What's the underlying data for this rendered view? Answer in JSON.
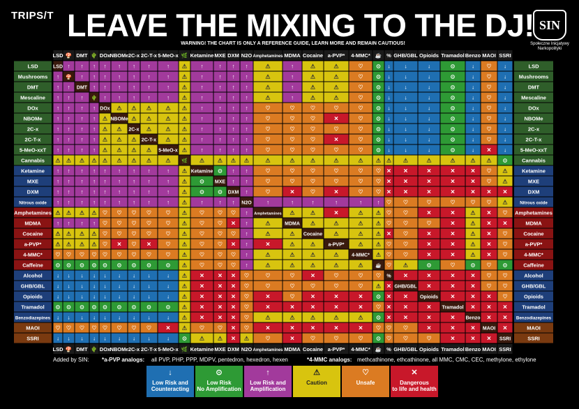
{
  "header": {
    "logo": "TRIPS/T",
    "title": "LEAVE THE MIXING TO THE DJ!",
    "warning": "WARNING! THE CHART IS ONLY A REFERENCE GUIDE, LEARN MORE AND REMAIN CAUTIOUS!",
    "sin_mark": "SIN",
    "sin_org": "Społeczne Inicjatywy Narkopolityki"
  },
  "colors": {
    "blue": "#1f6fb2",
    "green": "#2e9a35",
    "purple": "#a23a9c",
    "yellow": "#d8c40f",
    "orange": "#db7b22",
    "red": "#c8182a",
    "diag": "#3a1a0e"
  },
  "chart_data": {
    "type": "table",
    "title": "LEAVE THE MIXING TO THE DJ!",
    "col_labels": [
      "LSD",
      "🍄",
      "DMT",
      "🌵",
      "DOx",
      "NBOMe",
      "2C-x",
      "2C-T-x",
      "5-MeO-x",
      "🌿",
      "Ketamine",
      "MXE",
      "DXM",
      "N2O",
      "Amphetamines",
      "MDMA",
      "Cocaine",
      "a-PVP*",
      "4-MMC*",
      "☕",
      "%",
      "GHB/GBL",
      "Opioids",
      "Tramadol",
      "Benzo",
      "MAOI",
      "SSRI"
    ],
    "col_labels_bottom": [
      "LSD",
      "🍄",
      "DMT",
      "🌵",
      "DOx",
      "NBOMe",
      "2C-x",
      "2C-T-x",
      "5-MeO-x",
      "🌿",
      "Ketamine",
      "MXE",
      "DXM",
      "N2O",
      "Amphetamines",
      "MDMA",
      "Cocaine",
      "a-PVP*",
      "4-MMC*",
      "☕",
      "%",
      "GHB/GBL",
      "Opioids",
      "Tramadol",
      "Benzo",
      "MAOI",
      "SSRI"
    ],
    "row_labels": [
      "LSD",
      "Mushrooms",
      "DMT",
      "Mescaline",
      "DOx",
      "NBOMe",
      "2C-x",
      "2C-T-x",
      "5-MeO-xxT",
      "Cannabis",
      "Ketamine",
      "MXE",
      "DXM",
      "Nitrous oxide",
      "Amphetamines",
      "MDMA",
      "Cocaine",
      "a-PVP*",
      "4-MMC*",
      "Caffeine",
      "Alcohol",
      "GHB/GBL",
      "Opioids",
      "Tramadol",
      "Benzodiazepines",
      "MAOI",
      "SSRI"
    ],
    "category_key": {
      "S": "Low Risk and Counteracting",
      "G": "Low Risk No Amplification",
      "P": "Low Risk and Amplification",
      "Y": "Caution",
      "O": "Unsafe",
      "R": "Dangerous to life and health"
    },
    "cells": [
      [
        "-",
        "P",
        "P",
        "P",
        "P",
        "P",
        "P",
        "P",
        "P",
        "Y",
        "P",
        "P",
        "P",
        "P",
        "Y",
        "P",
        "Y",
        "Y",
        "O",
        "G",
        "S",
        "S",
        "S",
        "G",
        "S",
        "O",
        "S"
      ],
      [
        "P",
        "-",
        "P",
        "P",
        "P",
        "P",
        "P",
        "P",
        "P",
        "Y",
        "P",
        "P",
        "P",
        "P",
        "Y",
        "P",
        "Y",
        "Y",
        "O",
        "G",
        "S",
        "S",
        "S",
        "G",
        "S",
        "O",
        "S"
      ],
      [
        "P",
        "P",
        "-",
        "P",
        "P",
        "P",
        "P",
        "P",
        "P",
        "Y",
        "P",
        "P",
        "P",
        "P",
        "Y",
        "P",
        "Y",
        "Y",
        "O",
        "G",
        "S",
        "S",
        "S",
        "G",
        "S",
        "O",
        "S"
      ],
      [
        "P",
        "P",
        "P",
        "-",
        "P",
        "P",
        "P",
        "P",
        "P",
        "Y",
        "P",
        "P",
        "P",
        "P",
        "Y",
        "P",
        "Y",
        "Y",
        "O",
        "G",
        "S",
        "S",
        "S",
        "G",
        "S",
        "O",
        "S"
      ],
      [
        "P",
        "P",
        "P",
        "P",
        "-",
        "Y",
        "Y",
        "Y",
        "Y",
        "Y",
        "P",
        "P",
        "P",
        "P",
        "O",
        "O",
        "O",
        "O",
        "O",
        "G",
        "S",
        "S",
        "S",
        "G",
        "S",
        "O",
        "S"
      ],
      [
        "P",
        "P",
        "P",
        "P",
        "Y",
        "-",
        "Y",
        "Y",
        "Y",
        "Y",
        "P",
        "P",
        "P",
        "P",
        "O",
        "O",
        "O",
        "R",
        "O",
        "G",
        "S",
        "S",
        "S",
        "G",
        "S",
        "O",
        "S"
      ],
      [
        "P",
        "P",
        "P",
        "P",
        "Y",
        "Y",
        "-",
        "Y",
        "Y",
        "Y",
        "P",
        "P",
        "P",
        "P",
        "O",
        "O",
        "O",
        "O",
        "O",
        "G",
        "S",
        "S",
        "S",
        "G",
        "S",
        "O",
        "S"
      ],
      [
        "P",
        "P",
        "P",
        "P",
        "Y",
        "Y",
        "Y",
        "-",
        "Y",
        "Y",
        "P",
        "P",
        "P",
        "P",
        "O",
        "O",
        "O",
        "R",
        "O",
        "G",
        "S",
        "S",
        "S",
        "G",
        "S",
        "O",
        "S"
      ],
      [
        "P",
        "P",
        "P",
        "P",
        "Y",
        "Y",
        "Y",
        "Y",
        "-",
        "Y",
        "P",
        "P",
        "P",
        "P",
        "O",
        "O",
        "O",
        "O",
        "O",
        "G",
        "S",
        "S",
        "S",
        "G",
        "S",
        "R",
        "S"
      ],
      [
        "Y",
        "Y",
        "Y",
        "Y",
        "Y",
        "Y",
        "Y",
        "Y",
        "Y",
        "-",
        "Y",
        "Y",
        "Y",
        "Y",
        "Y",
        "Y",
        "Y",
        "Y",
        "Y",
        "Y",
        "Y",
        "Y",
        "Y",
        "Y",
        "Y",
        "Y",
        "G"
      ],
      [
        "P",
        "P",
        "P",
        "P",
        "P",
        "P",
        "P",
        "P",
        "P",
        "Y",
        "-",
        "G",
        "P",
        "P",
        "O",
        "O",
        "O",
        "O",
        "O",
        "O",
        "R",
        "R",
        "R",
        "R",
        "R",
        "O",
        "Y"
      ],
      [
        "P",
        "P",
        "P",
        "P",
        "P",
        "P",
        "P",
        "P",
        "P",
        "Y",
        "G",
        "-",
        "P",
        "P",
        "O",
        "O",
        "O",
        "O",
        "O",
        "O",
        "R",
        "R",
        "R",
        "R",
        "R",
        "O",
        "Y"
      ],
      [
        "P",
        "P",
        "P",
        "P",
        "P",
        "P",
        "P",
        "P",
        "P",
        "Y",
        "G",
        "G",
        "-",
        "P",
        "O",
        "R",
        "O",
        "R",
        "O",
        "O",
        "R",
        "R",
        "R",
        "R",
        "R",
        "R",
        "R"
      ],
      [
        "P",
        "P",
        "P",
        "P",
        "P",
        "P",
        "P",
        "P",
        "P",
        "Y",
        "P",
        "P",
        "P",
        "-",
        "P",
        "P",
        "P",
        "P",
        "P",
        "P",
        "O",
        "O",
        "O",
        "O",
        "O",
        "O",
        "Y"
      ],
      [
        "Y",
        "Y",
        "Y",
        "Y",
        "O",
        "O",
        "O",
        "O",
        "O",
        "Y",
        "O",
        "O",
        "O",
        "P",
        "-",
        "Y",
        "Y",
        "R",
        "Y",
        "Y",
        "O",
        "O",
        "R",
        "R",
        "Y",
        "R",
        "O"
      ],
      [
        "P",
        "P",
        "P",
        "P",
        "O",
        "O",
        "O",
        "O",
        "O",
        "Y",
        "O",
        "O",
        "R",
        "P",
        "Y",
        "-",
        "Y",
        "Y",
        "Y",
        "Y",
        "O",
        "O",
        "O",
        "R",
        "Y",
        "R",
        "R"
      ],
      [
        "Y",
        "Y",
        "Y",
        "Y",
        "O",
        "O",
        "O",
        "O",
        "O",
        "Y",
        "O",
        "O",
        "O",
        "P",
        "Y",
        "Y",
        "-",
        "Y",
        "Y",
        "Y",
        "R",
        "O",
        "R",
        "R",
        "Y",
        "R",
        "O"
      ],
      [
        "Y",
        "Y",
        "Y",
        "Y",
        "O",
        "R",
        "O",
        "R",
        "O",
        "Y",
        "O",
        "O",
        "R",
        "P",
        "R",
        "Y",
        "Y",
        "-",
        "Y",
        "Y",
        "O",
        "O",
        "R",
        "R",
        "Y",
        "R",
        "O"
      ],
      [
        "O",
        "O",
        "O",
        "O",
        "O",
        "O",
        "O",
        "O",
        "O",
        "Y",
        "O",
        "O",
        "O",
        "P",
        "Y",
        "Y",
        "Y",
        "Y",
        "-",
        "Y",
        "O",
        "O",
        "R",
        "R",
        "Y",
        "R",
        "O"
      ],
      [
        "G",
        "G",
        "G",
        "G",
        "G",
        "G",
        "G",
        "G",
        "G",
        "Y",
        "O",
        "O",
        "O",
        "P",
        "Y",
        "Y",
        "Y",
        "Y",
        "Y",
        "-",
        "O",
        "Y",
        "G",
        "O",
        "G",
        "O",
        "G"
      ],
      [
        "S",
        "S",
        "S",
        "S",
        "S",
        "S",
        "S",
        "S",
        "S",
        "Y",
        "R",
        "R",
        "R",
        "O",
        "O",
        "O",
        "R",
        "O",
        "O",
        "O",
        "-",
        "R",
        "R",
        "R",
        "R",
        "O",
        "O"
      ],
      [
        "S",
        "S",
        "S",
        "S",
        "S",
        "S",
        "S",
        "S",
        "S",
        "Y",
        "R",
        "R",
        "R",
        "O",
        "O",
        "O",
        "O",
        "O",
        "O",
        "Y",
        "R",
        "-",
        "R",
        "R",
        "R",
        "O",
        "O"
      ],
      [
        "S",
        "S",
        "S",
        "S",
        "S",
        "S",
        "S",
        "S",
        "S",
        "Y",
        "R",
        "R",
        "R",
        "O",
        "R",
        "O",
        "R",
        "R",
        "R",
        "G",
        "R",
        "R",
        "-",
        "R",
        "R",
        "R",
        "O"
      ],
      [
        "G",
        "G",
        "G",
        "G",
        "G",
        "G",
        "G",
        "G",
        "G",
        "Y",
        "R",
        "R",
        "R",
        "O",
        "R",
        "R",
        "R",
        "R",
        "R",
        "O",
        "R",
        "R",
        "R",
        "-",
        "R",
        "R",
        "R"
      ],
      [
        "S",
        "S",
        "S",
        "S",
        "S",
        "S",
        "S",
        "S",
        "S",
        "Y",
        "R",
        "R",
        "R",
        "O",
        "Y",
        "Y",
        "Y",
        "Y",
        "Y",
        "G",
        "R",
        "R",
        "R",
        "R",
        "-",
        "R",
        "R"
      ],
      [
        "O",
        "O",
        "O",
        "O",
        "O",
        "O",
        "O",
        "O",
        "R",
        "Y",
        "O",
        "O",
        "R",
        "O",
        "R",
        "R",
        "R",
        "R",
        "R",
        "O",
        "O",
        "O",
        "R",
        "R",
        "R",
        "-",
        "R"
      ],
      [
        "S",
        "S",
        "S",
        "S",
        "S",
        "S",
        "S",
        "S",
        "S",
        "G",
        "Y",
        "Y",
        "R",
        "Y",
        "O",
        "R",
        "O",
        "O",
        "O",
        "G",
        "O",
        "O",
        "O",
        "R",
        "R",
        "R",
        "-"
      ]
    ]
  },
  "legend": [
    {
      "key": "S",
      "line1": "Low Risk and",
      "line2": "Counteracting",
      "icon": "down-arrow-icon",
      "glyph": "↓"
    },
    {
      "key": "G",
      "line1": "Low Risk",
      "line2": "No Amplification",
      "icon": "circle-icon",
      "glyph": "⊙"
    },
    {
      "key": "P",
      "line1": "Low Risk and",
      "line2": "Amplification",
      "icon": "up-arrow-icon",
      "glyph": "↑"
    },
    {
      "key": "Y",
      "line1": "Caution",
      "line2": "",
      "icon": "warning-icon",
      "glyph": "⚠"
    },
    {
      "key": "O",
      "line1": "Unsafe",
      "line2": "",
      "icon": "heart-icon",
      "glyph": "♡"
    },
    {
      "key": "R",
      "line1": "Dangerous",
      "line2": "to life and health",
      "icon": "x-icon",
      "glyph": "✕"
    }
  ],
  "footnotes": {
    "added": "Added by SIN:",
    "apvp_label": "*a-PVP analogs:",
    "apvp_text": "all PVP, PHP, PPP, MDPV, pentedron, hexedron, hexen",
    "mmc_label": "*4-MMC analogs:",
    "mmc_text": "methcathinone, ethcathinone, all MMC, CMC, CEC, methylone, ethylone"
  }
}
